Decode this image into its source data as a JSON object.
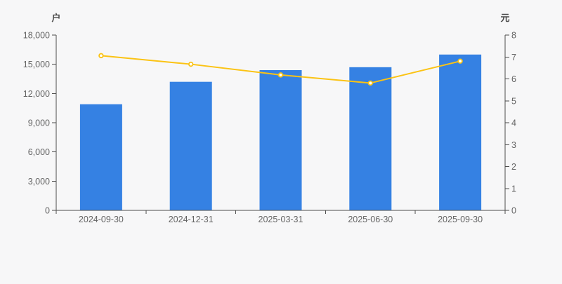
{
  "colors": {
    "background": "#f7f7f8",
    "bar": "#3581e3",
    "line": "#fbc314",
    "marker_fill": "#ffffff",
    "axis_line": "#4d4d4d",
    "tick_text": "#646464",
    "axis_title_text": "#4a4a4a"
  },
  "chart_data": {
    "type": "combo",
    "categories": [
      "2024-09-30",
      "2024-12-31",
      "2025-03-31",
      "2025-06-30",
      "2025-09-30"
    ],
    "series": [
      {
        "name": "bar-series",
        "type": "bar",
        "y_axis": "left",
        "values": [
          10900,
          13200,
          14400,
          14700,
          16000
        ],
        "color": "#3581e3"
      },
      {
        "name": "line-series",
        "type": "line",
        "y_axis": "right",
        "values": [
          7.06,
          6.67,
          6.18,
          5.81,
          6.81
        ],
        "color": "#fbc314"
      }
    ],
    "left_axis": {
      "title": "户",
      "min": 0,
      "max": 18000,
      "tick_labels": [
        "0",
        "3,000",
        "6,000",
        "9,000",
        "12,000",
        "15,000",
        "18,000"
      ]
    },
    "right_axis": {
      "title": "元",
      "min": 0,
      "max": 8,
      "tick_labels": [
        "0",
        "1",
        "2",
        "3",
        "4",
        "5",
        "6",
        "7",
        "8"
      ]
    },
    "grid": false,
    "legend": false
  }
}
